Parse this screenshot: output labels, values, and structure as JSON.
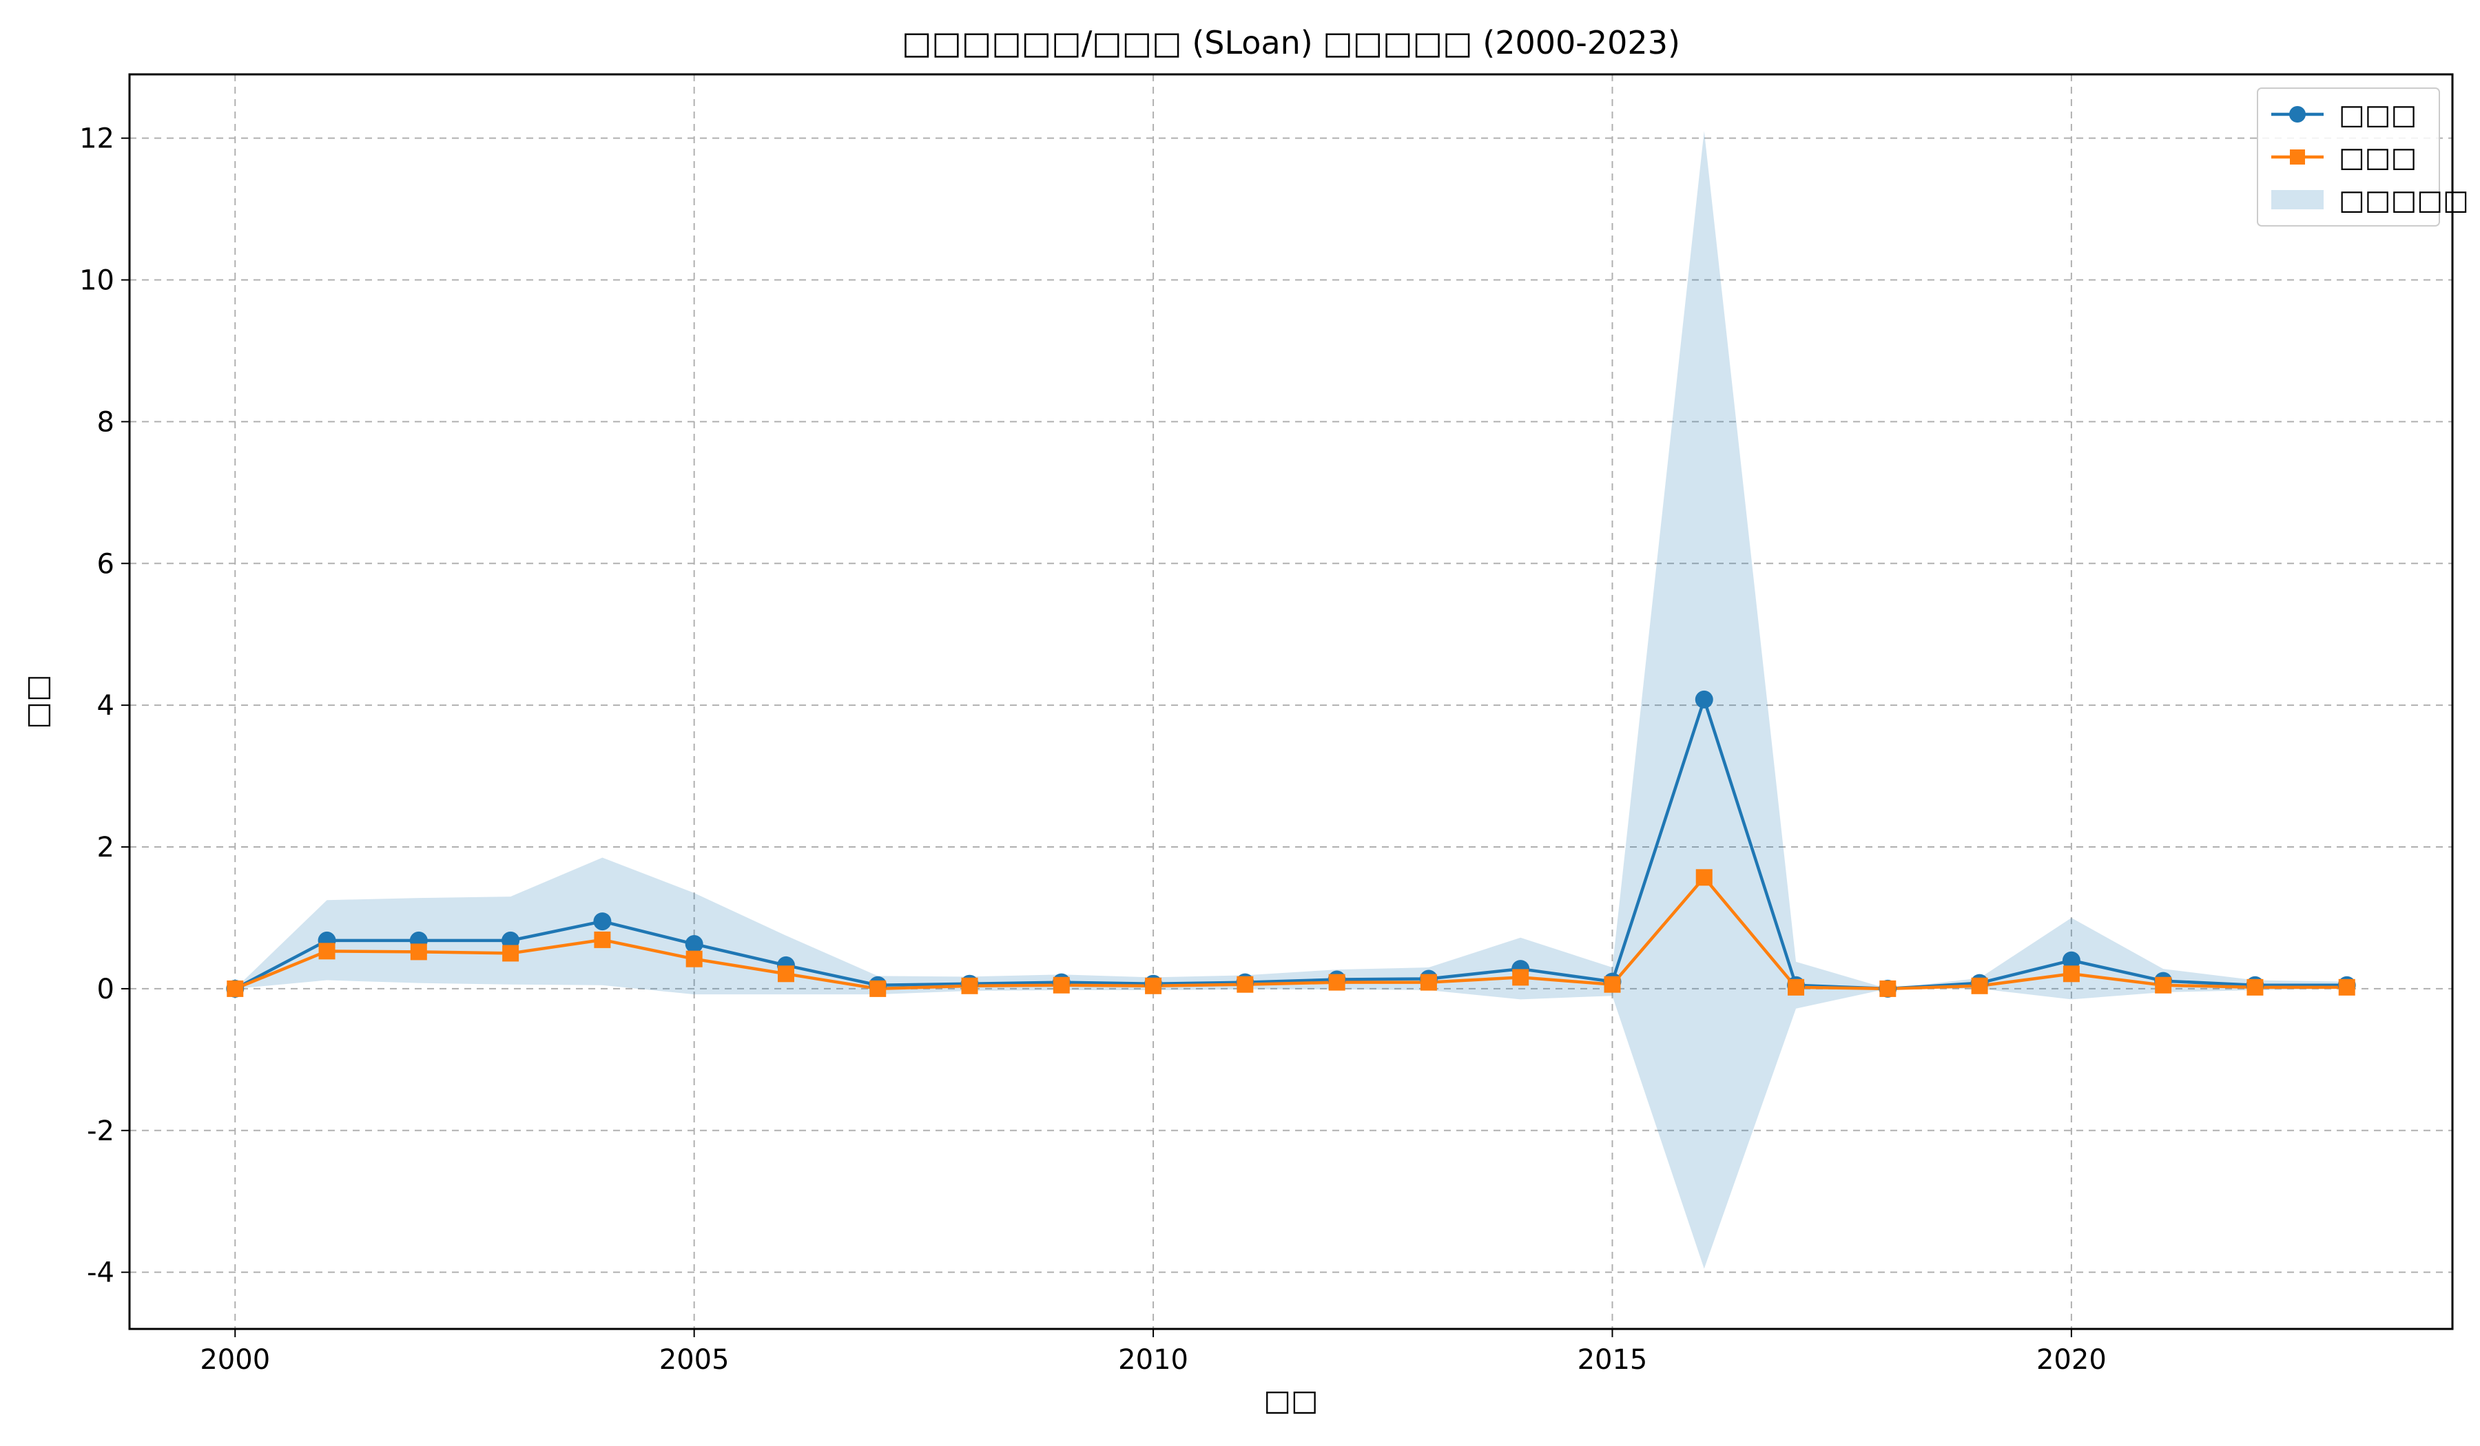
{
  "chart_data": {
    "type": "line",
    "title": "□□□□□□/□□□ (SLoan) □□□□□ (2000-2023)",
    "xlabel": "□□",
    "ylabel": "□□",
    "x": [
      2000,
      2001,
      2002,
      2003,
      2004,
      2005,
      2006,
      2007,
      2008,
      2009,
      2010,
      2011,
      2012,
      2013,
      2014,
      2015,
      2016,
      2017,
      2018,
      2019,
      2020,
      2021,
      2022,
      2023
    ],
    "xlim": [
      1998.85,
      2024.15
    ],
    "ylim": [
      -4.8,
      12.9
    ],
    "x_ticks": [
      2000,
      2005,
      2010,
      2015,
      2020
    ],
    "y_ticks": [
      -4,
      -2,
      0,
      2,
      4,
      6,
      8,
      10,
      12
    ],
    "grid": true,
    "legend_position": "top-right",
    "series": [
      {
        "name": "□□□",
        "kind": "line",
        "marker": "circle",
        "color": "#1f77b4",
        "values": [
          0.0,
          0.68,
          0.68,
          0.68,
          0.95,
          0.63,
          0.33,
          0.05,
          0.07,
          0.09,
          0.07,
          0.09,
          0.13,
          0.14,
          0.28,
          0.1,
          4.08,
          0.05,
          0.0,
          0.08,
          0.4,
          0.11,
          0.05,
          0.05
        ]
      },
      {
        "name": "□□□",
        "kind": "line",
        "marker": "square",
        "color": "#ff7f0e",
        "values": [
          0.0,
          0.53,
          0.52,
          0.5,
          0.69,
          0.42,
          0.21,
          0.0,
          0.04,
          0.05,
          0.04,
          0.06,
          0.09,
          0.09,
          0.16,
          0.06,
          1.57,
          0.02,
          0.0,
          0.04,
          0.21,
          0.05,
          0.02,
          0.02
        ]
      },
      {
        "name": "□□□□□",
        "kind": "band",
        "color": "#1f77b4",
        "opacity": 0.2,
        "upper": [
          0.0,
          1.25,
          1.28,
          1.3,
          1.85,
          1.35,
          0.75,
          0.18,
          0.17,
          0.2,
          0.16,
          0.19,
          0.27,
          0.3,
          0.72,
          0.3,
          12.1,
          0.38,
          0.0,
          0.15,
          1.0,
          0.28,
          0.12,
          0.1
        ],
        "lower": [
          0.0,
          0.12,
          0.08,
          0.06,
          0.05,
          -0.08,
          -0.08,
          -0.08,
          -0.03,
          -0.02,
          -0.02,
          -0.01,
          -0.01,
          -0.02,
          -0.15,
          -0.1,
          -3.95,
          -0.28,
          0.0,
          0.0,
          -0.15,
          -0.05,
          -0.02,
          0.0
        ]
      }
    ]
  }
}
